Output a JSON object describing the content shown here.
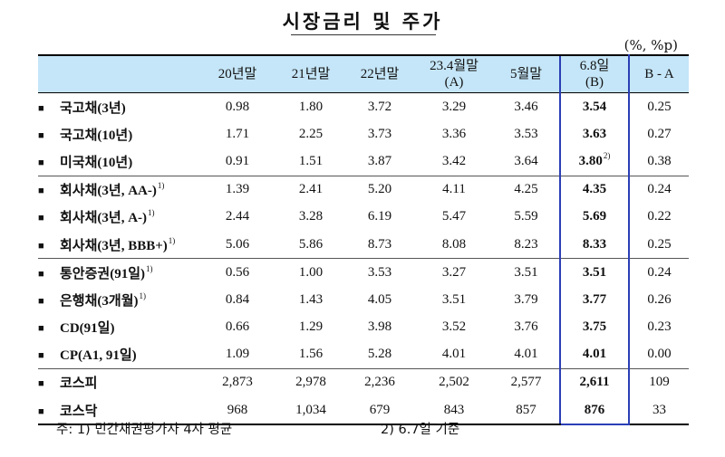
{
  "title": "시장금리 및 주가",
  "unit": "(%, %p)",
  "columns": {
    "c1": "20년말",
    "c2": "21년말",
    "c3": "22년말",
    "c4_line1": "23.4월말",
    "c4_line2": "(A)",
    "c5": "5월말",
    "c6_line1": "6.8일",
    "c6_line2": "(B)",
    "c7": "B - A"
  },
  "rows": [
    {
      "label": "국고채(3년)",
      "sup": "",
      "v": [
        "0.98",
        "1.80",
        "3.72",
        "3.29",
        "3.46",
        "3.54",
        "0.25"
      ],
      "bsup": ""
    },
    {
      "label": "국고채(10년)",
      "sup": "",
      "v": [
        "1.71",
        "2.25",
        "3.73",
        "3.36",
        "3.53",
        "3.63",
        "0.27"
      ],
      "bsup": ""
    },
    {
      "label": "미국채(10년)",
      "sup": "",
      "v": [
        "0.91",
        "1.51",
        "3.87",
        "3.42",
        "3.64",
        "3.80",
        "0.38"
      ],
      "bsup": "2)"
    },
    {
      "label": "회사채(3년, AA-)",
      "sup": "1)",
      "v": [
        "1.39",
        "2.41",
        "5.20",
        "4.11",
        "4.25",
        "4.35",
        "0.24"
      ],
      "bsup": ""
    },
    {
      "label": "회사채(3년, A-)",
      "sup": "1)",
      "v": [
        "2.44",
        "3.28",
        "6.19",
        "5.47",
        "5.59",
        "5.69",
        "0.22"
      ],
      "bsup": ""
    },
    {
      "label": "회사채(3년, BBB+)",
      "sup": "1)",
      "v": [
        "5.06",
        "5.86",
        "8.73",
        "8.08",
        "8.23",
        "8.33",
        "0.25"
      ],
      "bsup": ""
    },
    {
      "label": "통안증권(91일)",
      "sup": "1)",
      "v": [
        "0.56",
        "1.00",
        "3.53",
        "3.27",
        "3.51",
        "3.51",
        "0.24"
      ],
      "bsup": ""
    },
    {
      "label": "은행채(3개월)",
      "sup": "1)",
      "v": [
        "0.84",
        "1.43",
        "4.05",
        "3.51",
        "3.79",
        "3.77",
        "0.26"
      ],
      "bsup": ""
    },
    {
      "label": "CD(91일)",
      "sup": "",
      "v": [
        "0.66",
        "1.29",
        "3.98",
        "3.52",
        "3.76",
        "3.75",
        "0.23"
      ],
      "bsup": ""
    },
    {
      "label": "CP(A1, 91일)",
      "sup": "",
      "v": [
        "1.09",
        "1.56",
        "5.28",
        "4.01",
        "4.01",
        "4.01",
        "0.00"
      ],
      "bsup": ""
    },
    {
      "label": "코스피",
      "sup": "",
      "v": [
        "2,873",
        "2,978",
        "2,236",
        "2,502",
        "2,577",
        "2,611",
        "109"
      ],
      "bsup": ""
    },
    {
      "label": "코스닥",
      "sup": "",
      "v": [
        "968",
        "1,034",
        "679",
        "843",
        "857",
        "876",
        "33"
      ],
      "bsup": ""
    }
  ],
  "footnote": {
    "note1": "주: 1) 민간채권평가사 4사 평균",
    "note2": "2) 6.7일 기준"
  }
}
